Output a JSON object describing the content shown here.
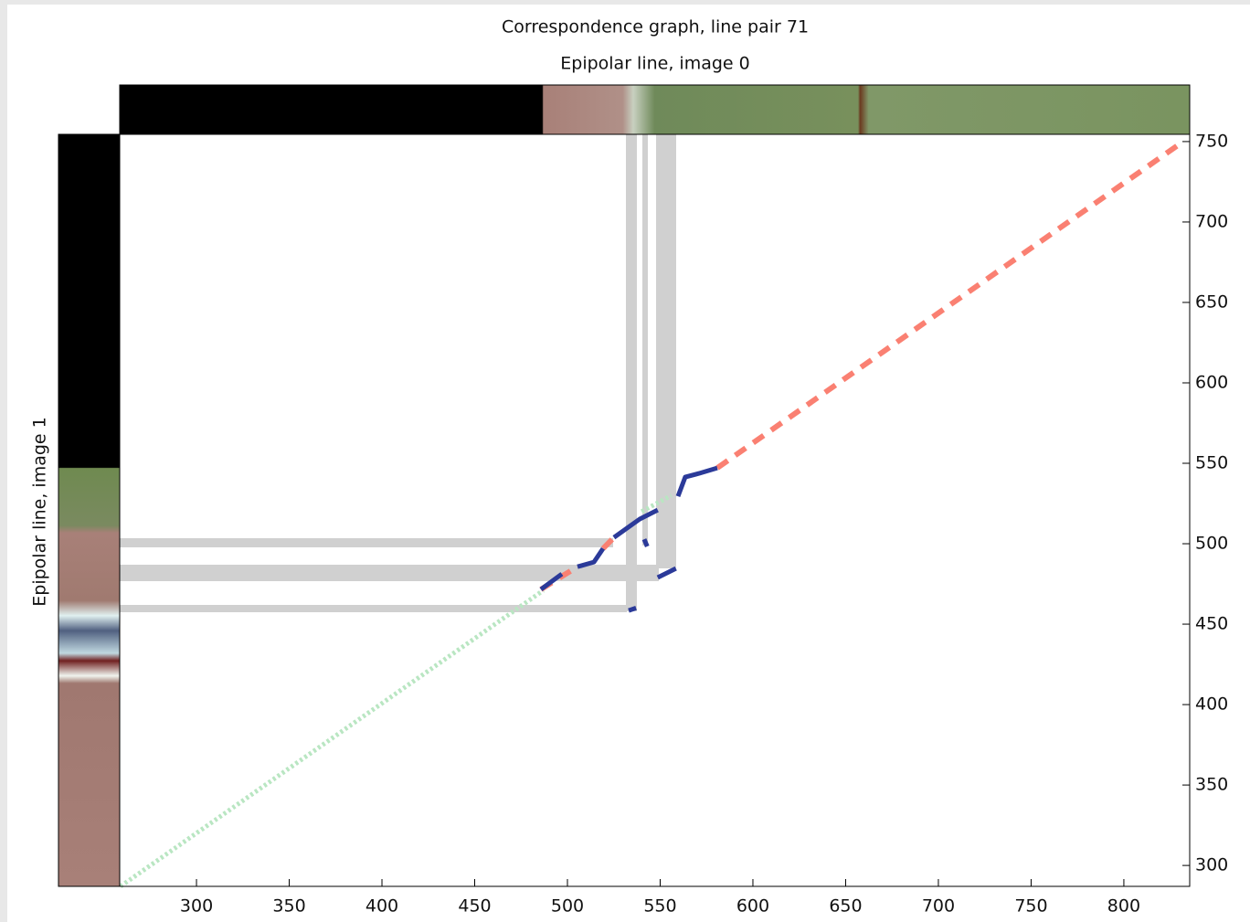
{
  "chart_data": {
    "type": "line",
    "title": "Correspondence graph, line pair 71",
    "xlabel": "Epipolar line, image 0",
    "ylabel": "Epipolar line, image 1",
    "xlim": [
      258.6,
      835.5
    ],
    "ylim": [
      287,
      754.5
    ],
    "xticks": [
      300,
      350,
      400,
      450,
      500,
      550,
      600,
      650,
      700,
      750,
      800
    ],
    "yticks": [
      300,
      350,
      400,
      450,
      500,
      550,
      600,
      650,
      700,
      750
    ],
    "series": [
      {
        "color": "#b9e6c2",
        "style": "dotted",
        "x": [
          259,
          487,
          null,
          540,
          556
        ],
        "y": [
          287,
          471,
          null,
          520,
          530
        ]
      },
      {
        "color": "#fa8072",
        "style": "dashed",
        "x": [
          485.7,
          505.4,
          null,
          519.2,
          525.1,
          null,
          580.8,
          832
        ],
        "y": [
          471.6,
          485.7,
          null,
          497,
          503.9,
          null,
          547.1,
          750
        ]
      },
      {
        "color": "#2b3a99",
        "style": "solid",
        "x": [
          485.7,
          497,
          null,
          505.4,
          514.3,
          519.2,
          null,
          525.1,
          538.9,
          548.7,
          null,
          559.6,
          563.5,
          570.9,
          580.8,
          null,
          541.4,
          543,
          null,
          548.7,
          558.5,
          null,
          533,
          537
        ],
        "y": [
          471.6,
          481.2,
          null,
          485.7,
          488.6,
          497,
          null,
          503.9,
          515.3,
          521,
          null,
          529.5,
          541.4,
          543.7,
          547.1,
          null,
          502.8,
          498.3,
          null,
          479,
          484.6,
          null,
          458.5,
          460
        ]
      }
    ]
  }
}
